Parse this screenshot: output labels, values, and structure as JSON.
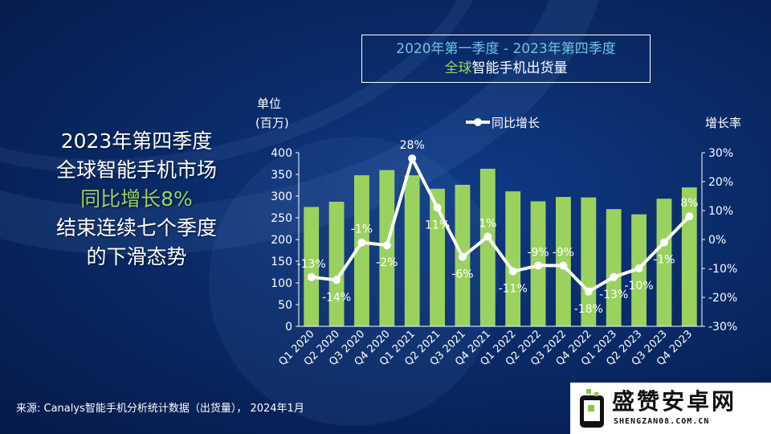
{
  "slide": {
    "title_line1": "2020年第一季度  - 2023年第四季度",
    "title_line2_prefix": "全球",
    "title_line2_rest": "智能手机出货量",
    "side_line1": "2023年第四季度",
    "side_line2": "全球智能手机市场",
    "side_line3": "同比增长8%",
    "side_line4": "结束连续七个季度",
    "side_line5": "的下滑态势",
    "source": "来源: Canalys智能手机分析统计数据（出货量）， 2024年1月",
    "logo_name": "盛赞安卓网",
    "logo_url": "SHENGZAN08.COM.CN",
    "colors": {
      "bar": "#9bd25f",
      "line": "#ffffff",
      "title_cyan": "#6fc5e2",
      "highlight": "#9bd25f"
    }
  },
  "chart_data": {
    "type": "bar",
    "categories": [
      "Q1 2020",
      "Q2 2020",
      "Q3 2020",
      "Q4 2020",
      "Q1 2021",
      "Q2 2021",
      "Q3 2021",
      "Q4 2021",
      "Q1 2022",
      "Q2 2022",
      "Q3 2022",
      "Q4 2022",
      "Q1 2023",
      "Q2 2023",
      "Q3 2023",
      "Q4 2023"
    ],
    "series": [
      {
        "kind": "bar",
        "axis": "left",
        "values": [
          275,
          287,
          348,
          360,
          348,
          317,
          326,
          363,
          311,
          288,
          298,
          297,
          270,
          258,
          294,
          320
        ]
      },
      {
        "kind": "line",
        "axis": "right",
        "name": "同比增长",
        "values": [
          -13,
          -14,
          -1,
          -2,
          28,
          11,
          -6,
          1,
          -11,
          -9,
          -9,
          -18,
          -13,
          -10,
          -1,
          8
        ],
        "labels": [
          "-13%",
          "-14%",
          "-1%",
          "-2%",
          "28%",
          "11%",
          "-6%",
          "1%",
          "-11%",
          "-9%",
          "-9%",
          "-18%",
          "-13%",
          "-10%",
          "-1%",
          "8%"
        ]
      }
    ],
    "ylabel_line1": "单位",
    "ylabel_line2": "(百万)",
    "y2label": "增长率",
    "ylim": [
      0,
      400
    ],
    "y_ticks": [
      "0",
      "50",
      "100",
      "150",
      "200",
      "250",
      "300",
      "350",
      "400"
    ],
    "y2lim": [
      -30,
      30
    ],
    "y2_ticks": [
      "-30%",
      "-20%",
      "-10%",
      "0%",
      "10%",
      "20%",
      "30%"
    ],
    "legend_position": "top-center",
    "grid": false
  }
}
